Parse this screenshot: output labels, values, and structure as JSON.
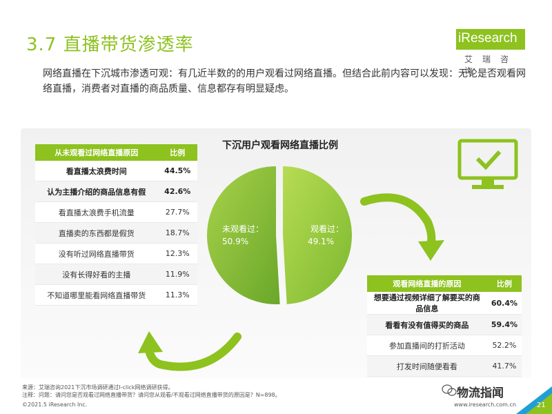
{
  "header": {
    "title": "3.7 直播带货渗透率",
    "logo_text": "iResearch",
    "logo_sub": "艾瑞咨询"
  },
  "lead": "网络直播在下沉城市渗透可观：有几近半数的的用户观看过网络直播。但结合此前内容可以发现：无论是否观看网络直播，消费者对直播的商品质量、信息都存有明显疑虑。",
  "pie": {
    "title": "下沉用户观看网络直播比例",
    "slices": [
      {
        "label": "未观看过：",
        "value_text": "50.9%",
        "value": 50.9,
        "color": "#7cb82f"
      },
      {
        "label": "观看过：",
        "value_text": "49.1%",
        "value": 49.1,
        "color": "#8dc21f"
      }
    ]
  },
  "table_not_watched": {
    "header": {
      "reason": "从未观看过网络直播原因",
      "ratio": "比例"
    },
    "rows": [
      {
        "reason": "看直播太浪费时间",
        "ratio": "44.5%",
        "bold": true
      },
      {
        "reason": "认为主播介绍的商品信息有假",
        "ratio": "42.6%",
        "bold": true
      },
      {
        "reason": "看直播太浪费手机流量",
        "ratio": "27.7%",
        "bold": false
      },
      {
        "reason": "直播卖的东西都是假货",
        "ratio": "18.7%",
        "bold": false
      },
      {
        "reason": "没有听过网络直播带货",
        "ratio": "12.3%",
        "bold": false
      },
      {
        "reason": "没有长得好看的主播",
        "ratio": "11.9%",
        "bold": false
      },
      {
        "reason": "不知道哪里能看网络直播带货",
        "ratio": "11.3%",
        "bold": false
      }
    ]
  },
  "table_watched": {
    "header": {
      "reason": "观看网络直播的原因",
      "ratio": "比例"
    },
    "rows": [
      {
        "reason": "想要通过视频详细了解要买的商品信息",
        "ratio": "60.4%",
        "bold": true
      },
      {
        "reason": "看看有没有值得买的商品",
        "ratio": "59.4%",
        "bold": true
      },
      {
        "reason": "参加直播间的打折活动",
        "ratio": "52.2%",
        "bold": false
      },
      {
        "reason": "打发时间随便看看",
        "ratio": "41.7%",
        "bold": false
      }
    ]
  },
  "notes": {
    "source": "来源：艾瑞咨询2021下沉市场调研通过I-click网络调研获得。",
    "question": "注释：问题：请问您是否观看过网络直播带货？请问您从观看/不观看过网络直播带货的原因是？N=898。"
  },
  "footer": {
    "copyright": "©2021.5 iResearch Inc.",
    "url": "www.iresearch.com.cn",
    "page": "21",
    "watermark": "物流指闻"
  },
  "colors": {
    "accent": "#8dc21f",
    "accent_dark": "#7cb82f"
  }
}
